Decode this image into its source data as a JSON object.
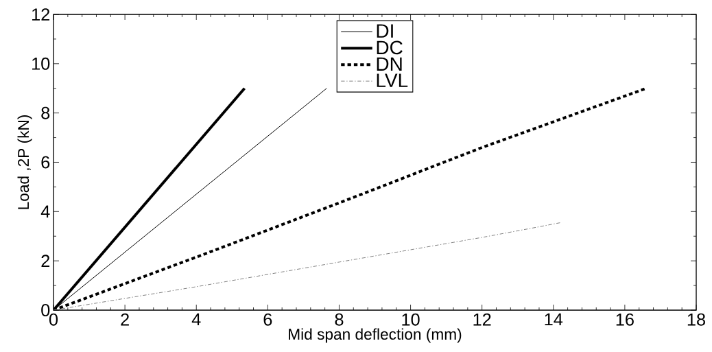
{
  "chart_data": {
    "type": "line",
    "xlabel": "Mid span deflection (mm)",
    "ylabel": "Load ,2P (kN)",
    "xlim": [
      0,
      18
    ],
    "xticks": [
      0,
      2,
      4,
      6,
      8,
      10,
      12,
      14,
      16,
      18
    ],
    "ylim": [
      0,
      12
    ],
    "yticks": [
      0,
      2,
      4,
      6,
      8,
      10,
      12
    ],
    "grid": false,
    "legend": "top",
    "series": [
      {
        "name": "DI",
        "color": "#000000",
        "line_style": "solid",
        "x": [
          0,
          7.65
        ],
        "values": [
          0,
          9.0
        ]
      },
      {
        "name": "DC",
        "color": "#000000",
        "line_style": "solid",
        "x": [
          0,
          5.35
        ],
        "values": [
          0,
          9.0
        ]
      },
      {
        "name": "DN",
        "color": "#000000",
        "line_style": "dotted",
        "x": [
          0,
          4,
          8,
          12,
          16.6
        ],
        "values": [
          0,
          2.15,
          4.35,
          6.6,
          9.0
        ]
      },
      {
        "name": "LVL",
        "color": "#808080",
        "line_style": "dashdot",
        "x": [
          0,
          4,
          8,
          12,
          13.3,
          14.2
        ],
        "values": [
          0,
          0.95,
          1.95,
          2.95,
          3.3,
          3.55
        ]
      }
    ]
  }
}
